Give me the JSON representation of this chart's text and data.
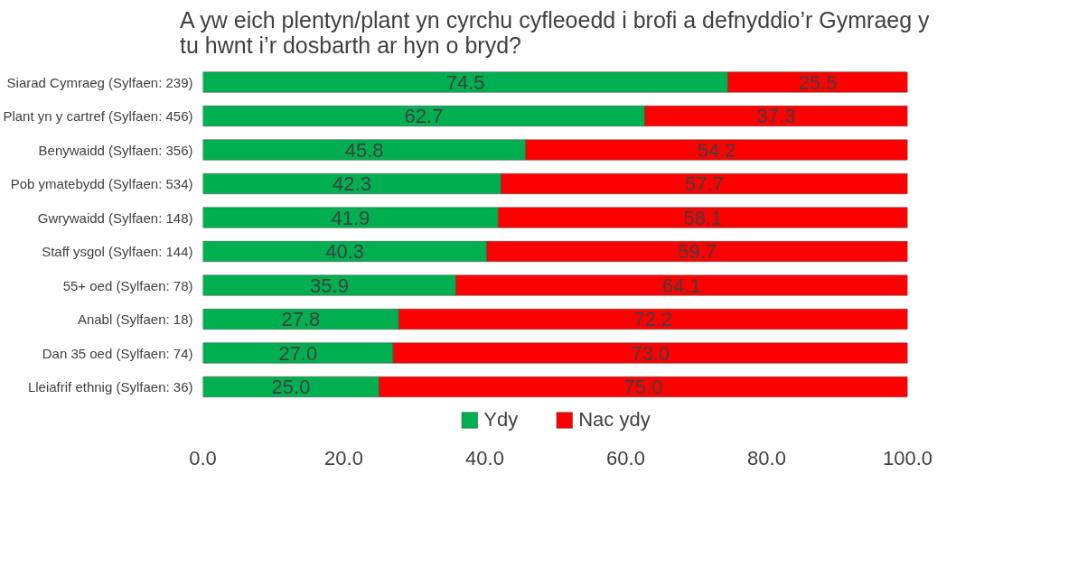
{
  "chart_data": {
    "type": "bar",
    "orientation": "horizontal",
    "stacked": true,
    "title": "A yw eich plentyn/plant yn cyrchu cyfleoedd i brofi a defnyddio’r Gymraeg y tu hwnt i’r dosbarth ar hyn o bryd?",
    "categories": [
      "Siarad Cymraeg (Sylfaen: 239)",
      "Plant yn y cartref (Sylfaen: 456)",
      "Benywaidd (Sylfaen: 356)",
      "Pob ymatebydd (Sylfaen: 534)",
      "Gwrywaidd (Sylfaen: 148)",
      "Staff ysgol (Sylfaen: 144)",
      "55+ oed (Sylfaen: 78)",
      "Anabl (Sylfaen: 18)",
      "Dan 35 oed (Sylfaen: 74)",
      "Lleiafrif ethnig (Sylfaen: 36)"
    ],
    "series": [
      {
        "name": "Ydy",
        "color": "#00b050",
        "values": [
          74.5,
          62.7,
          45.8,
          42.3,
          41.9,
          40.3,
          35.9,
          27.8,
          27.0,
          25.0
        ],
        "value_labels": [
          "74.5",
          "62.7",
          "45.8",
          "42.3",
          "41.9",
          "40.3",
          "35.9",
          "27.8",
          "27.0",
          "25.0"
        ]
      },
      {
        "name": "Nac ydy",
        "color": "#ff0000",
        "values": [
          25.5,
          37.3,
          54.2,
          57.7,
          58.1,
          59.7,
          64.1,
          72.2,
          73.0,
          75.0
        ],
        "value_labels": [
          "25.5",
          "37.3",
          "54.2",
          "57.7",
          "58.1",
          "59.7",
          "64.1",
          "72.2",
          "73.0",
          "75.0"
        ]
      }
    ],
    "xlim": [
      0,
      100
    ],
    "xticks": [
      {
        "value": 0,
        "label": "0.0"
      },
      {
        "value": 20,
        "label": "20.0"
      },
      {
        "value": 40,
        "label": "40.0"
      },
      {
        "value": 60,
        "label": "60.0"
      },
      {
        "value": 80,
        "label": "80.0"
      },
      {
        "value": 100,
        "label": "100.0"
      }
    ],
    "grid": false,
    "legend": "bottom"
  }
}
